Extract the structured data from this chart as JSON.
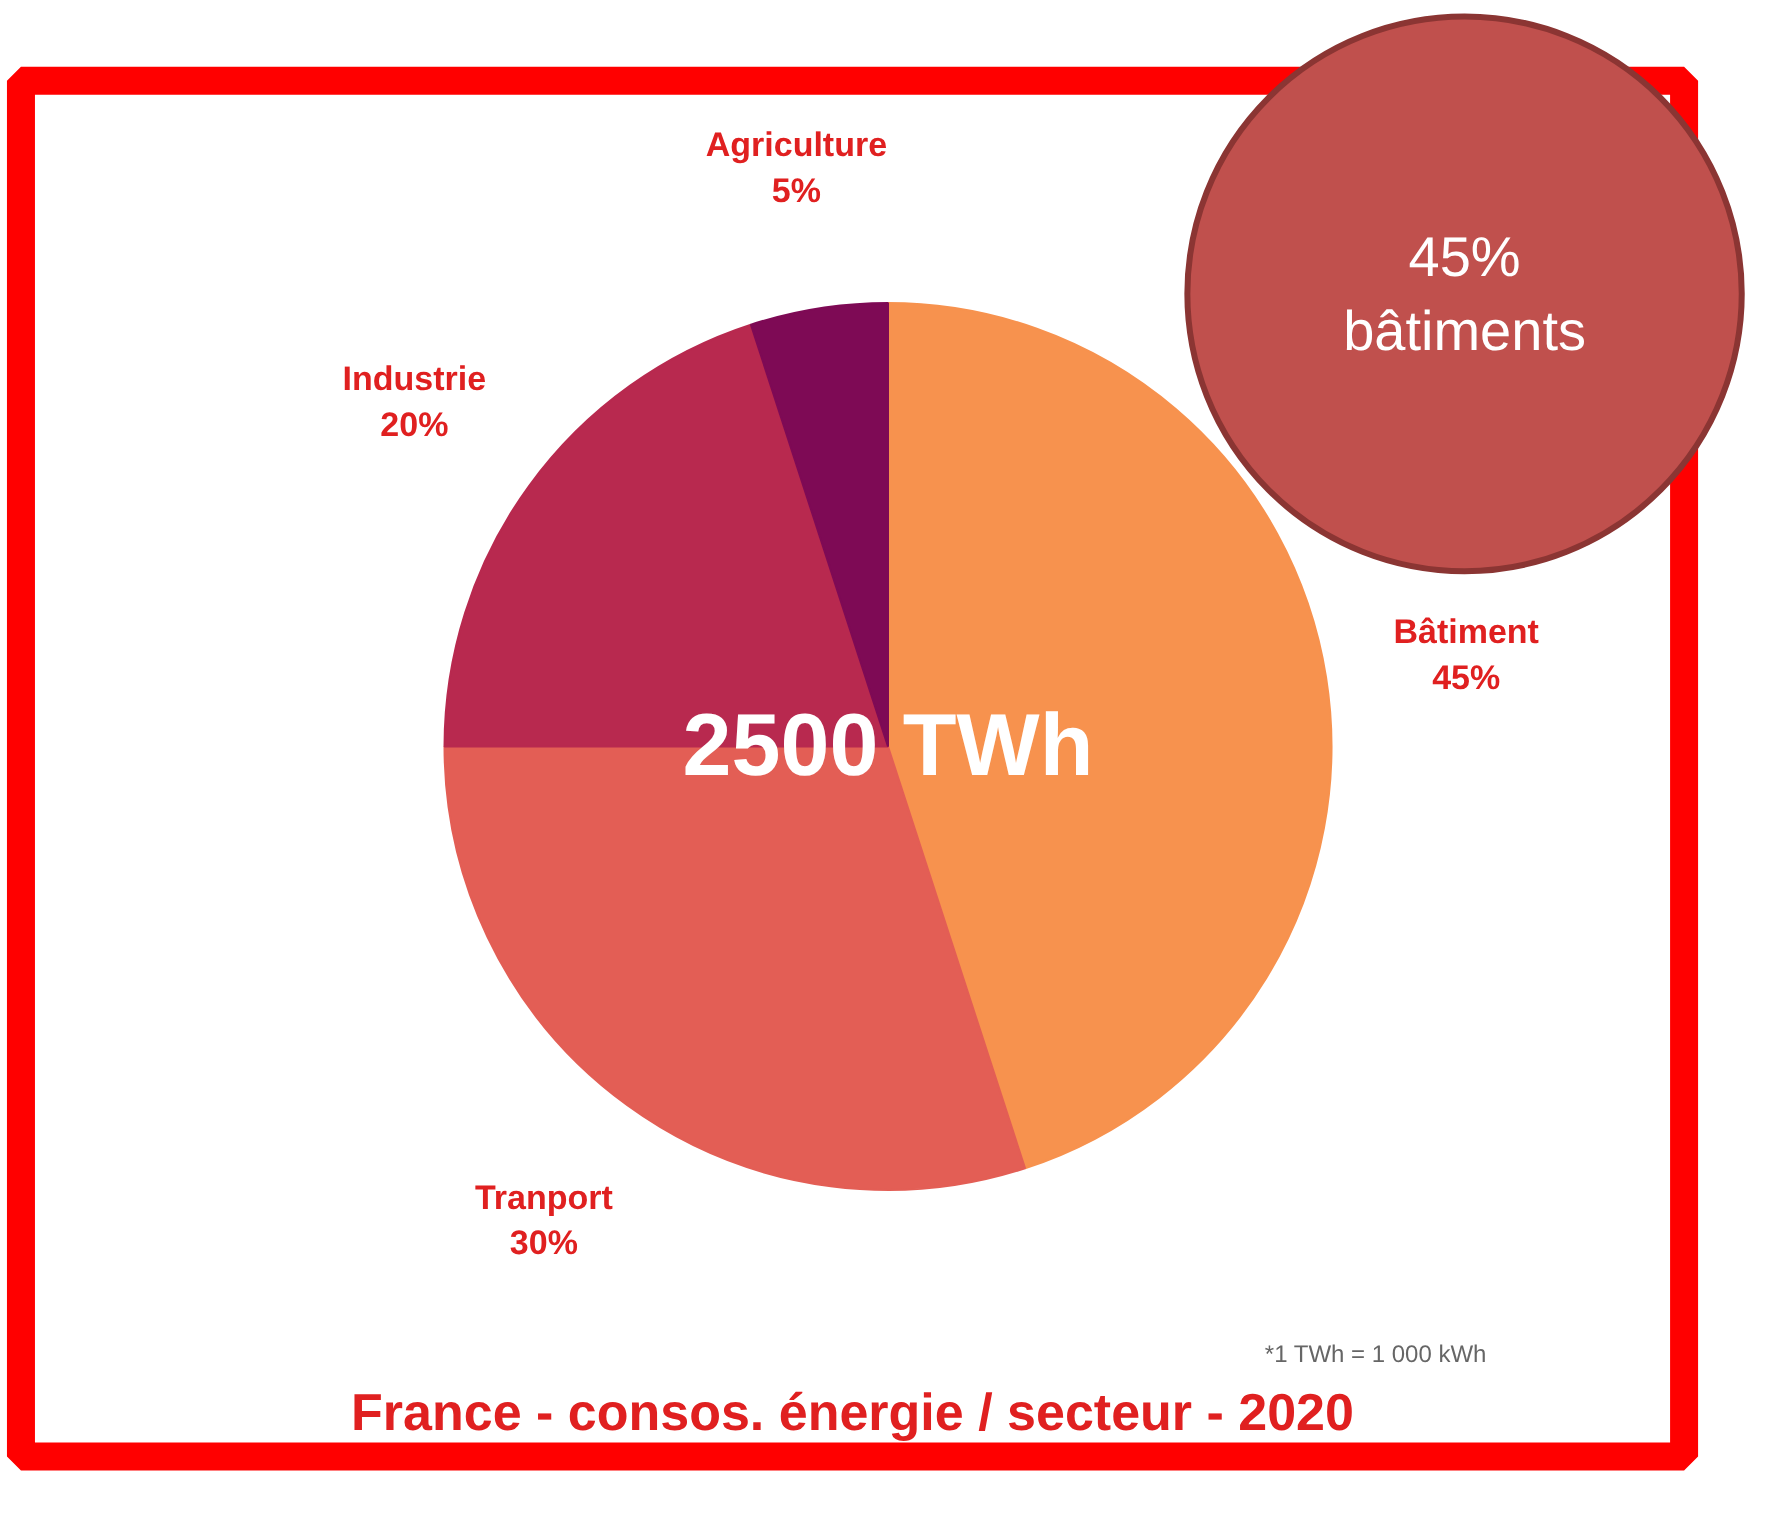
{
  "chart_data": {
    "type": "pie",
    "title": "France - consos. énergie / secteur - 2020",
    "categories": [
      "Bâtiment",
      "Tranport",
      "Industrie",
      "Agriculture"
    ],
    "values": [
      45,
      30,
      20,
      5
    ],
    "value_labels": [
      "45%",
      "30%",
      "20%",
      "5%"
    ],
    "colors": [
      "#f7924e",
      "#e35e55",
      "#b8294f",
      "#7e0a55"
    ],
    "annotations": [
      "2500 TWh",
      "*1 TWh = 1 000 kWh",
      "45%\nbâtiments"
    ]
  }
}
